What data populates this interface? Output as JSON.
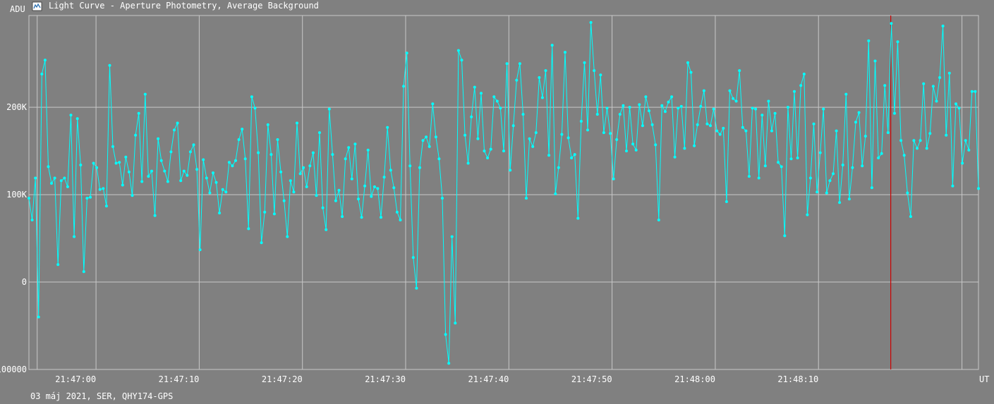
{
  "header": {
    "title": "Light Curve - Aperture Photometry, Average Background",
    "icon": "light-curve-icon"
  },
  "footer": {
    "caption": "03 máj 2021, SER, QHY174-GPS"
  },
  "colors": {
    "background": "#808080",
    "grid": "#c8c8c8",
    "series": "#00ffff",
    "cursor": "#cc0000"
  },
  "chart_data": {
    "type": "line",
    "title": "Light Curve - Aperture Photometry, Average Background",
    "ylabel": "ADU",
    "xlabel": "UT",
    "ylim": [
      -100000,
      305000
    ],
    "xlim": [
      "21:46:53.5",
      "21:48:25.5"
    ],
    "y_ticks": [
      {
        "value": 200000,
        "label": "200K"
      },
      {
        "value": 100000,
        "label": "100K"
      },
      {
        "value": 0,
        "label": "0"
      },
      {
        "value": -100000,
        "label": "-100000"
      }
    ],
    "x_ticks": [
      "21:47:00",
      "21:47:10",
      "21:47:20",
      "21:47:30",
      "21:47:40",
      "21:47:50",
      "21:48:00",
      "21:48:10"
    ],
    "grid": true,
    "cursor_time": "21:48:17",
    "series": [
      {
        "time_start": "21:46:53.5",
        "time_end": "21:48:25.5",
        "values": [
          96000,
          71000,
          119000,
          -40000,
          238000,
          254000,
          132000,
          113000,
          119000,
          20000,
          116000,
          119000,
          109000,
          191000,
          52000,
          187000,
          134000,
          12000,
          96000,
          97000,
          136000,
          131000,
          106000,
          107000,
          87000,
          248000,
          155000,
          136000,
          137000,
          111000,
          143000,
          126000,
          99000,
          168000,
          193000,
          115000,
          215000,
          121000,
          127000,
          76000,
          164000,
          139000,
          127000,
          115000,
          149000,
          174000,
          182000,
          116000,
          127000,
          122000,
          149000,
          157000,
          129000,
          37000,
          140000,
          119000,
          102000,
          125000,
          114000,
          79000,
          106000,
          103000,
          137000,
          133000,
          139000,
          163000,
          175000,
          141000,
          61000,
          212000,
          199000,
          148000,
          45000,
          80000,
          180000,
          146000,
          78000,
          163000,
          126000,
          93000,
          52000,
          116000,
          103000,
          182000,
          124000,
          131000,
          109000,
          133000,
          148000,
          99000,
          171000,
          85000,
          60000,
          198000,
          146000,
          93000,
          105000,
          75000,
          141000,
          154000,
          118000,
          158000,
          95000,
          74000,
          110000,
          151000,
          98000,
          109000,
          107000,
          74000,
          120000,
          177000,
          128000,
          108000,
          80000,
          71000,
          224000,
          262000,
          133000,
          28000,
          -7000,
          131000,
          162000,
          166000,
          155000,
          204000,
          166000,
          141000,
          96000,
          -60000,
          -93000,
          52000,
          -47000,
          265000,
          254000,
          168000,
          136000,
          189000,
          223000,
          164000,
          216000,
          150000,
          142000,
          152000,
          212000,
          207000,
          199000,
          150000,
          250000,
          128000,
          179000,
          231000,
          250000,
          192000,
          96000,
          164000,
          155000,
          171000,
          234000,
          211000,
          242000,
          145000,
          271000,
          101000,
          131000,
          169000,
          263000,
          165000,
          142000,
          146000,
          73000,
          184000,
          251000,
          174000,
          297000,
          242000,
          192000,
          237000,
          171000,
          199000,
          170000,
          118000,
          163000,
          192000,
          202000,
          150000,
          200000,
          158000,
          151000,
          203000,
          179000,
          212000,
          196000,
          180000,
          157000,
          71000,
          202000,
          195000,
          206000,
          212000,
          143000,
          199000,
          201000,
          153000,
          251000,
          240000,
          156000,
          180000,
          201000,
          219000,
          181000,
          179000,
          198000,
          173000,
          169000,
          176000,
          92000,
          219000,
          210000,
          207000,
          242000,
          177000,
          173000,
          121000,
          199000,
          198000,
          119000,
          191000,
          133000,
          207000,
          173000,
          193000,
          137000,
          132000,
          53000,
          200000,
          141000,
          218000,
          142000,
          225000,
          238000,
          77000,
          119000,
          181000,
          103000,
          148000,
          198000,
          102000,
          116000,
          124000,
          173000,
          91000,
          134000,
          215000,
          95000,
          131000,
          183000,
          194000,
          133000,
          167000,
          276000,
          108000,
          253000,
          142000,
          147000,
          225000,
          171000,
          296000,
          193000,
          275000,
          162000,
          145000,
          102000,
          75000,
          162000,
          153000,
          162000,
          227000,
          153000,
          170000,
          224000,
          207000,
          234000,
          293000,
          168000,
          239000,
          110000,
          204000,
          199000,
          136000,
          162000,
          151000,
          218000,
          218000,
          107000
        ]
      }
    ]
  }
}
